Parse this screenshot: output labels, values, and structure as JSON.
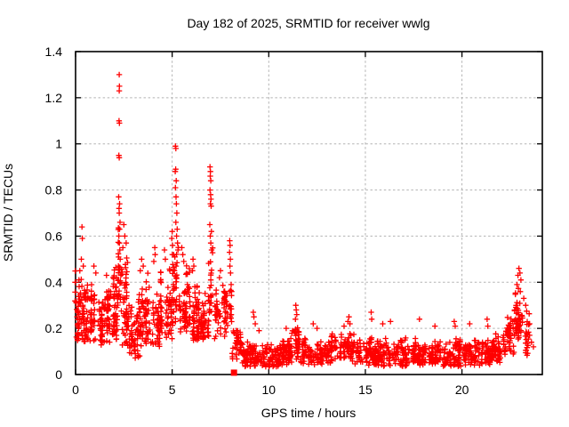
{
  "page": {
    "background": "#ffffff"
  },
  "chart_data": {
    "type": "scatter",
    "title": "Day 182 of 2025, SRMTID for receiver wwlg",
    "xlabel": "GPS time / hours",
    "ylabel": "SRMTID / TECUs",
    "xlim": [
      0,
      24.16
    ],
    "ylim": [
      0,
      1.4
    ],
    "xticks": [
      0,
      5,
      10,
      15,
      20
    ],
    "xtick_labels": [
      "0",
      "5",
      "10",
      "15",
      "20"
    ],
    "yticks": [
      0,
      0.2,
      0.4,
      0.6,
      0.8,
      1,
      1.2,
      1.4
    ],
    "ytick_labels": [
      "0",
      "0.2",
      "0.4",
      "0.6",
      "0.8",
      "1",
      "1.2",
      "1.4"
    ],
    "grid": true,
    "legend": "none",
    "marker": "plus",
    "colors": {
      "marker": "#ff0000",
      "grid": "#b3b3b3",
      "border": "#000000",
      "text": "#000000",
      "background": "#ffffff"
    },
    "special_points": [
      {
        "marker": "filled-square",
        "x": 8.2,
        "y": 0.008
      }
    ],
    "outlier_points": [
      [
        2.26,
        1.3
      ],
      [
        2.27,
        1.25
      ],
      [
        2.26,
        1.23
      ],
      [
        2.25,
        1.1
      ],
      [
        2.27,
        1.09
      ],
      [
        2.24,
        0.95
      ],
      [
        2.26,
        0.94
      ],
      [
        2.23,
        0.77
      ],
      [
        2.28,
        0.74
      ],
      [
        2.25,
        0.72
      ],
      [
        2.26,
        0.7
      ],
      [
        2.3,
        0.66
      ],
      [
        2.28,
        0.63
      ],
      [
        2.24,
        0.6
      ],
      [
        2.27,
        0.57
      ],
      [
        2.29,
        0.54
      ],
      [
        2.31,
        0.5
      ],
      [
        2.22,
        0.47
      ],
      [
        5.17,
        0.99
      ],
      [
        5.19,
        0.98
      ],
      [
        5.18,
        0.89
      ],
      [
        5.16,
        0.88
      ],
      [
        5.21,
        0.84
      ],
      [
        5.17,
        0.81
      ],
      [
        5.2,
        0.77
      ],
      [
        5.22,
        0.74
      ],
      [
        5.24,
        0.7
      ],
      [
        5.19,
        0.66
      ],
      [
        5.26,
        0.63
      ],
      [
        5.23,
        0.6
      ],
      [
        5.28,
        0.57
      ],
      [
        5.3,
        0.54
      ],
      [
        5.14,
        0.51
      ],
      [
        5.0,
        0.62
      ],
      [
        4.98,
        0.59
      ],
      [
        5.02,
        0.56
      ],
      [
        5.01,
        0.52
      ],
      [
        6.96,
        0.9
      ],
      [
        6.98,
        0.88
      ],
      [
        6.97,
        0.86
      ],
      [
        7.0,
        0.84
      ],
      [
        6.96,
        0.8
      ],
      [
        6.99,
        0.78
      ],
      [
        7.01,
        0.76
      ],
      [
        6.98,
        0.74
      ],
      [
        7.02,
        0.73
      ],
      [
        6.95,
        0.65
      ],
      [
        7.03,
        0.62
      ],
      [
        6.97,
        0.6
      ],
      [
        7.0,
        0.57
      ],
      [
        7.04,
        0.54
      ],
      [
        7.98,
        0.58
      ],
      [
        8.0,
        0.56
      ],
      [
        7.97,
        0.53
      ],
      [
        8.01,
        0.5
      ],
      [
        7.99,
        0.47
      ],
      [
        8.02,
        0.44
      ],
      [
        0.33,
        0.64
      ],
      [
        0.35,
        0.59
      ],
      [
        0.3,
        0.5
      ],
      [
        0.4,
        0.47
      ],
      [
        0.22,
        0.45
      ],
      [
        0.95,
        0.47
      ],
      [
        1.05,
        0.44
      ],
      [
        1.6,
        0.43
      ],
      [
        2.5,
        0.65
      ],
      [
        2.55,
        0.6
      ],
      [
        2.62,
        0.57
      ],
      [
        2.45,
        0.55
      ],
      [
        3.42,
        0.5
      ],
      [
        3.5,
        0.47
      ],
      [
        3.35,
        0.45
      ],
      [
        4.1,
        0.55
      ],
      [
        4.12,
        0.52
      ],
      [
        4.05,
        0.49
      ],
      [
        4.6,
        0.54
      ],
      [
        4.65,
        0.5
      ],
      [
        5.5,
        0.55
      ],
      [
        5.55,
        0.52
      ],
      [
        5.6,
        0.49
      ],
      [
        6.08,
        0.5
      ],
      [
        6.12,
        0.47
      ],
      [
        6.05,
        0.45
      ],
      [
        7.5,
        0.45
      ],
      [
        7.45,
        0.42
      ],
      [
        9.2,
        0.27
      ],
      [
        9.23,
        0.25
      ],
      [
        9.3,
        0.22
      ],
      [
        9.5,
        0.19
      ],
      [
        10.9,
        0.2
      ],
      [
        11.4,
        0.3
      ],
      [
        11.42,
        0.28
      ],
      [
        11.45,
        0.26
      ],
      [
        11.38,
        0.24
      ],
      [
        12.3,
        0.22
      ],
      [
        12.5,
        0.2
      ],
      [
        13.9,
        0.21
      ],
      [
        14.1,
        0.23
      ],
      [
        14.15,
        0.25
      ],
      [
        14.2,
        0.22
      ],
      [
        15.3,
        0.27
      ],
      [
        15.33,
        0.24
      ],
      [
        15.9,
        0.22
      ],
      [
        16.3,
        0.23
      ],
      [
        17.8,
        0.24
      ],
      [
        18.6,
        0.21
      ],
      [
        19.6,
        0.23
      ],
      [
        19.65,
        0.21
      ],
      [
        20.4,
        0.22
      ],
      [
        21.3,
        0.24
      ],
      [
        21.34,
        0.21
      ],
      [
        22.95,
        0.46
      ],
      [
        23.0,
        0.44
      ],
      [
        22.9,
        0.43
      ],
      [
        23.05,
        0.41
      ],
      [
        22.85,
        0.39
      ],
      [
        23.2,
        0.33
      ],
      [
        23.3,
        0.3
      ],
      [
        23.5,
        0.17
      ],
      [
        23.6,
        0.14
      ],
      [
        23.7,
        0.12
      ]
    ],
    "density_bands": {
      "format": [
        "x_start_hours",
        "x_end_hours",
        "approx_point_count",
        "y_min_TECU",
        "y_max_TECU"
      ],
      "seed": 182,
      "bands": [
        [
          0.0,
          0.9,
          95,
          0.14,
          0.4
        ],
        [
          0.0,
          0.5,
          15,
          0.3,
          0.47
        ],
        [
          0.9,
          1.9,
          100,
          0.12,
          0.38
        ],
        [
          1.9,
          2.2,
          40,
          0.15,
          0.5
        ],
        [
          2.2,
          2.35,
          28,
          0.28,
          0.72
        ],
        [
          2.35,
          2.75,
          52,
          0.12,
          0.56
        ],
        [
          2.75,
          3.3,
          60,
          0.07,
          0.36
        ],
        [
          3.3,
          3.75,
          50,
          0.12,
          0.45
        ],
        [
          3.75,
          4.4,
          60,
          0.12,
          0.43
        ],
        [
          4.4,
          5.0,
          60,
          0.15,
          0.46
        ],
        [
          5.0,
          5.35,
          34,
          0.22,
          0.6
        ],
        [
          5.35,
          5.9,
          55,
          0.18,
          0.5
        ],
        [
          5.9,
          6.5,
          60,
          0.14,
          0.4
        ],
        [
          6.5,
          6.9,
          45,
          0.15,
          0.36
        ],
        [
          6.9,
          7.12,
          20,
          0.22,
          0.58
        ],
        [
          7.1,
          7.85,
          62,
          0.15,
          0.4
        ],
        [
          7.85,
          8.1,
          16,
          0.18,
          0.42
        ],
        [
          8.1,
          8.6,
          40,
          0.06,
          0.22
        ],
        [
          8.6,
          9.6,
          85,
          0.035,
          0.16
        ],
        [
          9.6,
          10.6,
          85,
          0.03,
          0.14
        ],
        [
          10.6,
          11.2,
          70,
          0.04,
          0.16
        ],
        [
          11.2,
          11.6,
          32,
          0.06,
          0.22
        ],
        [
          11.6,
          13.2,
          125,
          0.04,
          0.16
        ],
        [
          13.2,
          14.4,
          95,
          0.05,
          0.18
        ],
        [
          14.4,
          15.6,
          92,
          0.04,
          0.17
        ],
        [
          15.6,
          17.2,
          125,
          0.035,
          0.16
        ],
        [
          17.2,
          18.8,
          125,
          0.04,
          0.16
        ],
        [
          18.8,
          20.2,
          110,
          0.035,
          0.17
        ],
        [
          20.2,
          21.6,
          110,
          0.04,
          0.16
        ],
        [
          21.6,
          22.3,
          55,
          0.05,
          0.18
        ],
        [
          22.3,
          22.75,
          42,
          0.08,
          0.28
        ],
        [
          22.75,
          23.15,
          48,
          0.15,
          0.42
        ],
        [
          23.15,
          23.55,
          26,
          0.08,
          0.3
        ]
      ]
    }
  }
}
